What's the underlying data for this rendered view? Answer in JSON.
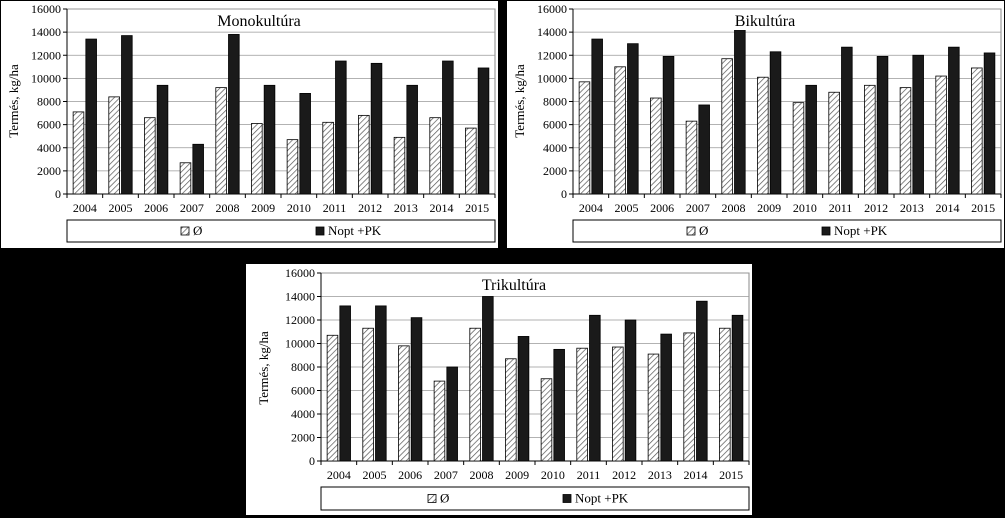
{
  "chart_data": [
    {
      "type": "bar",
      "title": "Monokultúra",
      "ylabel": "Termés, kg/ha",
      "xlabel": "",
      "ylim": [
        0,
        16000
      ],
      "yticks": [
        "0",
        "2000",
        "4000",
        "6000",
        "8000",
        "10000",
        "12000",
        "14000",
        "16000"
      ],
      "categories": [
        "2004",
        "2005",
        "2006",
        "2007",
        "2008",
        "2009",
        "2010",
        "2011",
        "2012",
        "2013",
        "2014",
        "2015"
      ],
      "series": [
        {
          "name": "Ø",
          "color": "#ffffff",
          "pattern": "hatched",
          "values": [
            7100,
            8400,
            6600,
            2700,
            9200,
            6100,
            4700,
            6200,
            6800,
            4900,
            6600,
            5700
          ]
        },
        {
          "name": "Nopt +PK",
          "color": "#1a1a1a",
          "values": [
            13400,
            13700,
            9400,
            4300,
            13800,
            9400,
            8700,
            11500,
            11300,
            9400,
            11500,
            10900
          ]
        }
      ],
      "grid": true,
      "legend_position": "bottom"
    },
    {
      "type": "bar",
      "title": "Bikultúra",
      "ylabel": "Termés, kg/ha",
      "xlabel": "",
      "ylim": [
        0,
        16000
      ],
      "yticks": [
        "0",
        "2000",
        "4000",
        "6000",
        "8000",
        "10000",
        "12000",
        "14000",
        "16000"
      ],
      "categories": [
        "2004",
        "2005",
        "2006",
        "2007",
        "2008",
        "2009",
        "2010",
        "2011",
        "2012",
        "2013",
        "2014",
        "2015"
      ],
      "series": [
        {
          "name": "Ø",
          "color": "#ffffff",
          "pattern": "hatched",
          "values": [
            9700,
            11000,
            8300,
            6300,
            11700,
            10100,
            7900,
            8800,
            9400,
            9200,
            10200,
            10900
          ]
        },
        {
          "name": "Nopt +PK",
          "color": "#1a1a1a",
          "values": [
            13400,
            13000,
            11900,
            7700,
            14200,
            12300,
            9400,
            12700,
            11900,
            12000,
            12700,
            12200
          ]
        }
      ],
      "grid": true,
      "legend_position": "bottom"
    },
    {
      "type": "bar",
      "title": "Trikultúra",
      "ylabel": "Termés, kg/ha",
      "xlabel": "",
      "ylim": [
        0,
        16000
      ],
      "yticks": [
        "0",
        "2000",
        "4000",
        "6000",
        "8000",
        "10000",
        "12000",
        "14000",
        "16000"
      ],
      "categories": [
        "2004",
        "2005",
        "2006",
        "2007",
        "2008",
        "2009",
        "2010",
        "2011",
        "2012",
        "2013",
        "2014",
        "2015"
      ],
      "series": [
        {
          "name": "Ø",
          "color": "#ffffff",
          "pattern": "hatched",
          "values": [
            10700,
            11300,
            9800,
            6800,
            11300,
            8700,
            7000,
            9600,
            9700,
            9100,
            10900,
            11300
          ]
        },
        {
          "name": "Nopt +PK",
          "color": "#1a1a1a",
          "values": [
            13200,
            13200,
            12200,
            8000,
            14000,
            10600,
            9500,
            12400,
            12000,
            10800,
            13600,
            12400
          ]
        }
      ],
      "grid": true,
      "legend_position": "bottom"
    }
  ]
}
